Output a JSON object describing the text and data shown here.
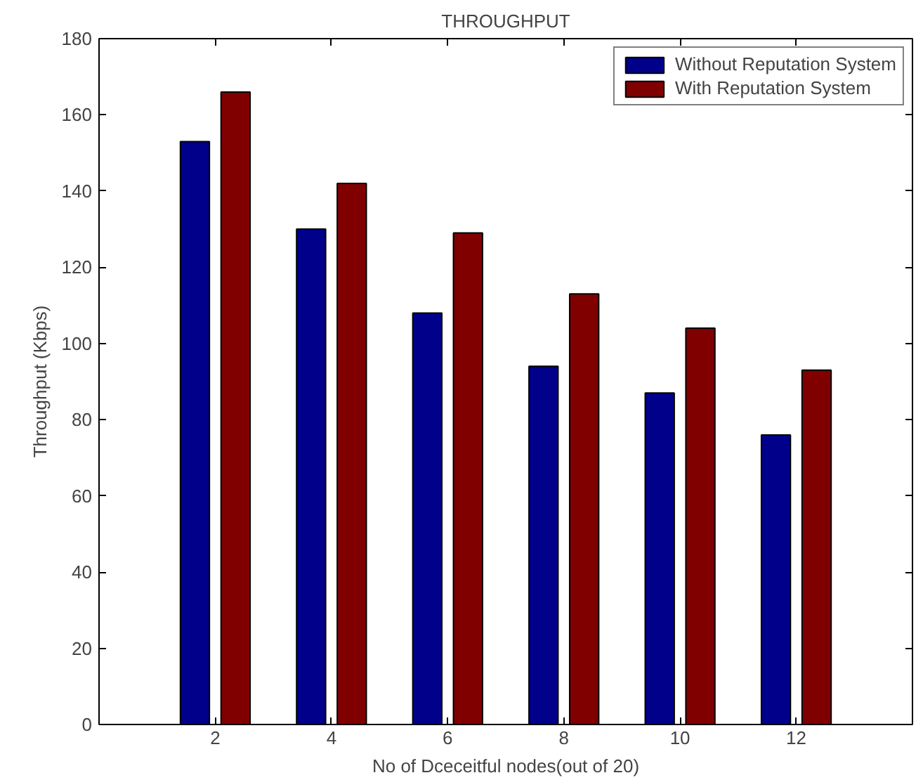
{
  "chart_data": {
    "type": "bar",
    "title": "THROUGHPUT",
    "xlabel": "No of Dceceitful nodes(out of 20)",
    "ylabel": "Throughput (Kbps)",
    "x": [
      2,
      4,
      6,
      8,
      10,
      12
    ],
    "series": [
      {
        "name": "Without Reputation System",
        "color": "#00008b",
        "values": [
          153,
          130,
          108,
          94,
          87,
          76
        ]
      },
      {
        "name": "With Reputation System",
        "color": "#800000",
        "values": [
          166,
          142,
          129,
          113,
          104,
          93
        ]
      }
    ],
    "xlim": [
      0,
      14
    ],
    "xticks": [
      2,
      4,
      6,
      8,
      10,
      12
    ],
    "ylim": [
      0,
      180
    ],
    "yticks": [
      0,
      20,
      40,
      60,
      80,
      100,
      120,
      140,
      160,
      180
    ],
    "grid": false,
    "legend": "top right"
  }
}
